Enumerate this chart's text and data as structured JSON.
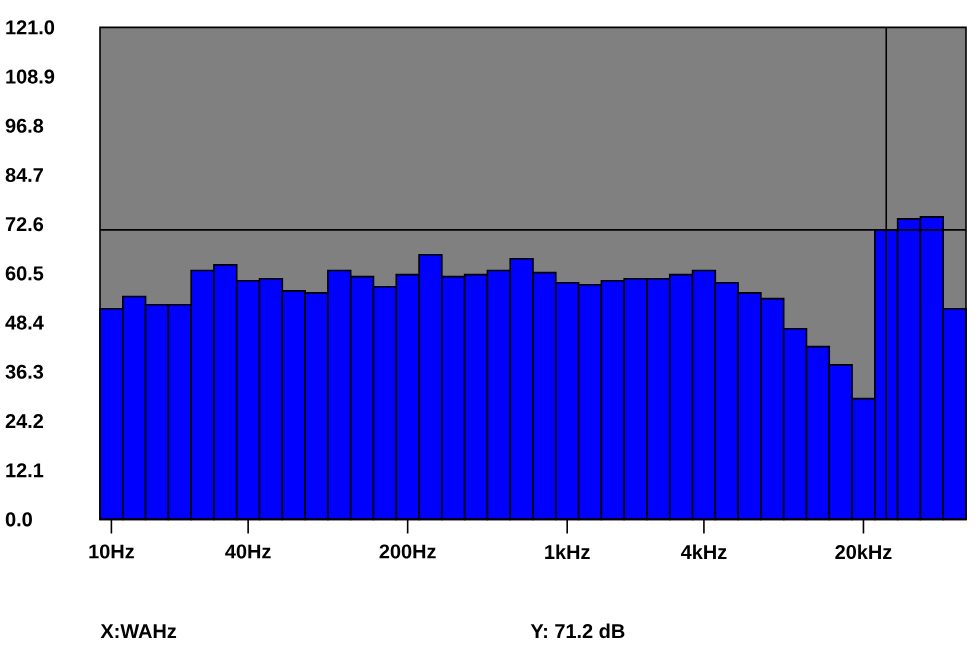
{
  "chart_data": {
    "type": "bar",
    "categories": [
      "10Hz",
      null,
      null,
      null,
      null,
      null,
      "40Hz",
      null,
      null,
      null,
      null,
      null,
      null,
      "200Hz",
      null,
      null,
      null,
      null,
      null,
      null,
      "1kHz",
      null,
      null,
      null,
      null,
      null,
      "4kHz",
      null,
      null,
      null,
      null,
      null,
      null,
      "20kHz",
      null,
      null,
      null,
      null
    ],
    "values": [
      51.8,
      54.8,
      52.8,
      52.8,
      61.2,
      62.6,
      58.7,
      59.2,
      56.2,
      55.7,
      61.2,
      59.7,
      57.2,
      60.2,
      65.1,
      59.7,
      60.2,
      61.2,
      64.1,
      60.7,
      58.2,
      57.7,
      58.7,
      59.2,
      59.2,
      60.2,
      61.2,
      58.2,
      55.7,
      54.3,
      46.9,
      42.5,
      38.0,
      29.7,
      71.2,
      73.9,
      74.4,
      51.8
    ],
    "color": "#0000ff",
    "ylim": [
      0,
      121
    ],
    "yticks": [
      {
        "value": 0,
        "label": "0.0"
      },
      12.1,
      24.2,
      36.3,
      48.4,
      60.5,
      72.6,
      84.7,
      96.8,
      108.9,
      {
        "value": 121,
        "label": "121.0"
      }
    ],
    "ref_lines": [
      {
        "axis": "y",
        "value": 71.2
      }
    ],
    "annotations": [
      "X:WAHz",
      "Y: 71.2 dB"
    ]
  }
}
